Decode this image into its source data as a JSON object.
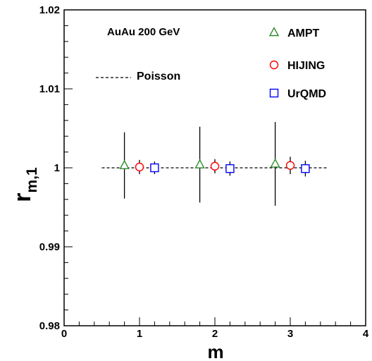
{
  "chart_data": {
    "type": "scatter",
    "title": "",
    "annotation": "AuAu 200 GeV",
    "xlabel": "m",
    "ylabel_main": "r",
    "ylabel_sub": "m,1",
    "xlim": [
      0,
      4
    ],
    "ylim": [
      0.98,
      1.02
    ],
    "x_ticks": [
      "0",
      "1",
      "2",
      "3",
      "4"
    ],
    "y_ticks": [
      "0.98",
      "0.99",
      "1",
      "1.01",
      "1.02"
    ],
    "grid": false,
    "legend_position": "top-right",
    "series": [
      {
        "name": "AMPT",
        "marker": "triangle",
        "color": "#2e8b2e",
        "points": [
          {
            "x": 0.8,
            "y": 1.0003,
            "err": 0.0042
          },
          {
            "x": 1.8,
            "y": 1.0004,
            "err": 0.0048
          },
          {
            "x": 2.8,
            "y": 1.0005,
            "err": 0.0053
          }
        ]
      },
      {
        "name": "HIJING",
        "marker": "circle",
        "color": "#ff0000",
        "points": [
          {
            "x": 1.0,
            "y": 1.0001,
            "err": 0.0009
          },
          {
            "x": 2.0,
            "y": 1.0002,
            "err": 0.0009
          },
          {
            "x": 3.0,
            "y": 1.0003,
            "err": 0.0011
          }
        ]
      },
      {
        "name": "UrQMD",
        "marker": "square",
        "color": "#0000ff",
        "points": [
          {
            "x": 1.2,
            "y": 1.0,
            "err": 0.0008
          },
          {
            "x": 2.2,
            "y": 0.9999,
            "err": 0.0009
          },
          {
            "x": 3.2,
            "y": 0.9999,
            "err": 0.001
          }
        ]
      }
    ],
    "reference_line": {
      "name": "Poisson",
      "y": 1.0,
      "x_range": [
        0.5,
        3.5
      ],
      "style": "dashed"
    }
  }
}
